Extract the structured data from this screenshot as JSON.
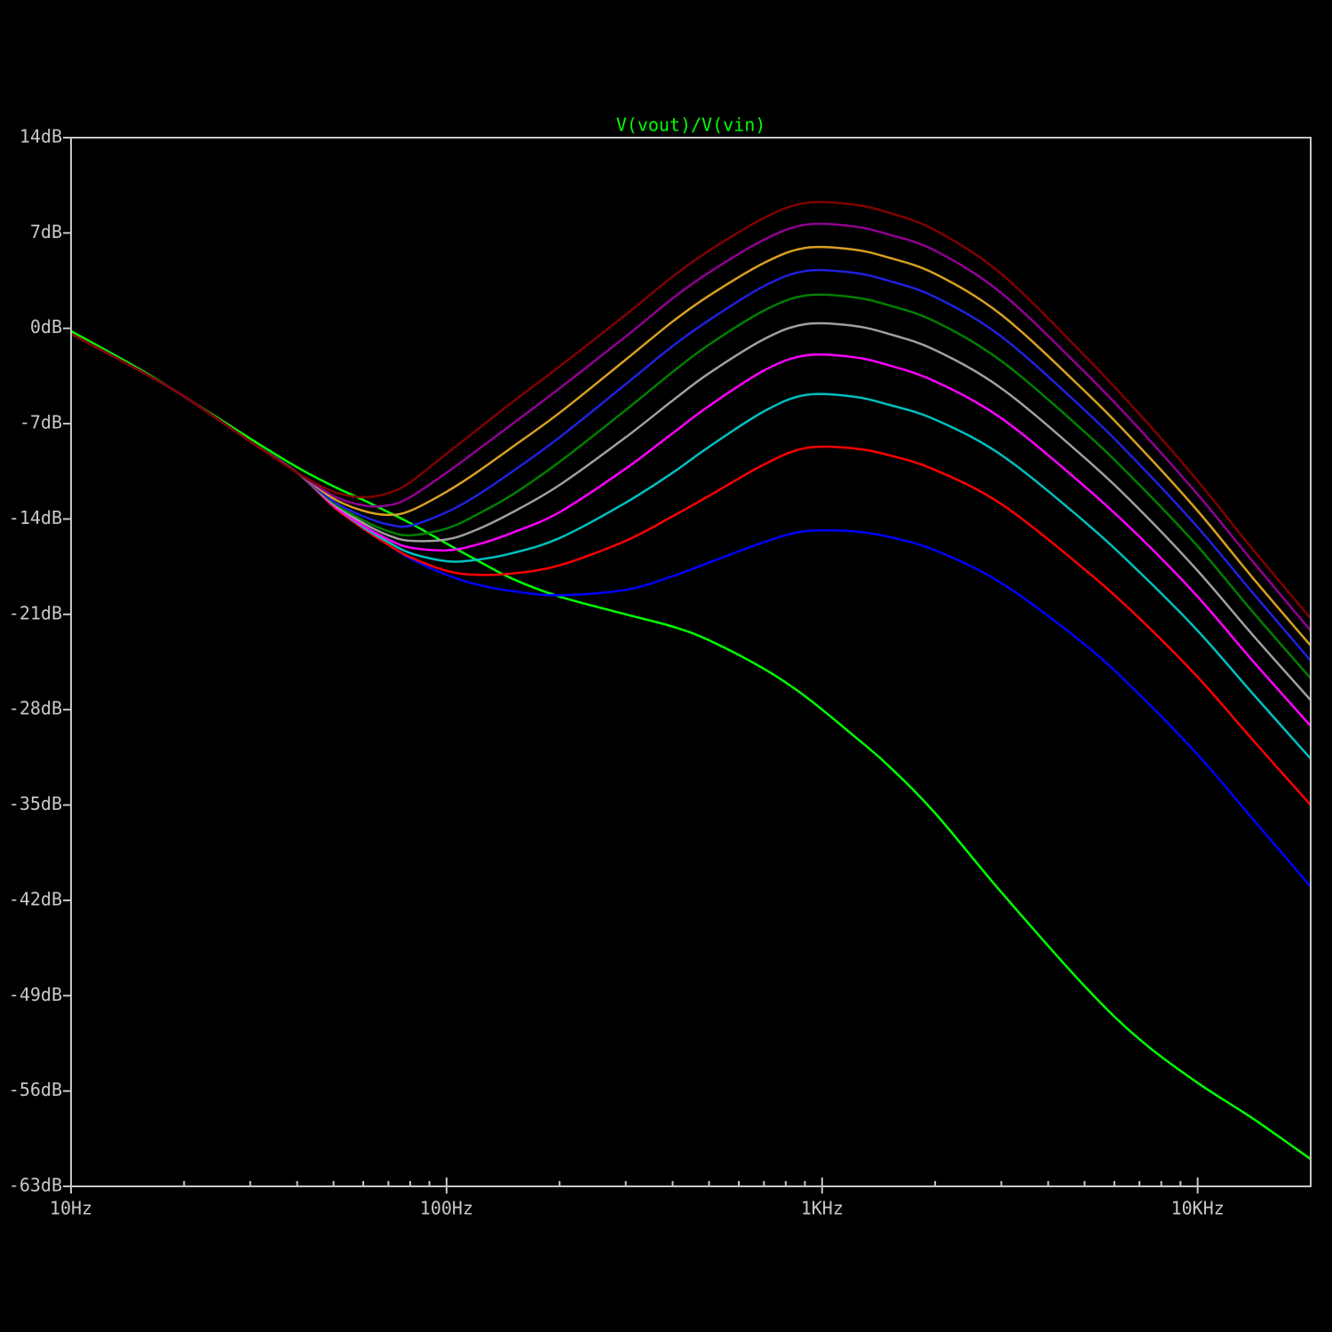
{
  "chart_data": {
    "type": "line",
    "title": "V(vout)/V(vin)",
    "title_color": "#00ff00",
    "log_x": true,
    "grid": false,
    "x": [
      10,
      15,
      20,
      30,
      40,
      50,
      60,
      70,
      80,
      100,
      120,
      150,
      200,
      300,
      400,
      500,
      700,
      900,
      1200,
      1500,
      2000,
      3000,
      5000,
      7000,
      10000,
      14000,
      20000
    ],
    "xlim": [
      10,
      20000
    ],
    "xticks": [
      {
        "value": 10,
        "label": "10Hz"
      },
      {
        "value": 100,
        "label": "100Hz"
      },
      {
        "value": 1000,
        "label": "1KHz"
      },
      {
        "value": 10000,
        "label": "10KHz"
      }
    ],
    "xminor_ticks": [
      20,
      30,
      40,
      50,
      60,
      70,
      80,
      90,
      200,
      300,
      400,
      500,
      600,
      700,
      800,
      900,
      2000,
      3000,
      4000,
      5000,
      6000,
      7000,
      8000,
      9000,
      20000
    ],
    "ylim": [
      -63,
      14
    ],
    "yticks": [
      {
        "value": 14,
        "label": "14dB"
      },
      {
        "value": 7,
        "label": "7dB"
      },
      {
        "value": 0,
        "label": "0dB"
      },
      {
        "value": -7,
        "label": "-7dB"
      },
      {
        "value": -14,
        "label": "-14dB"
      },
      {
        "value": -21,
        "label": "-21dB"
      },
      {
        "value": -28,
        "label": "-28dB"
      },
      {
        "value": -35,
        "label": "-35dB"
      },
      {
        "value": -42,
        "label": "-42dB"
      },
      {
        "value": -49,
        "label": "-49dB"
      },
      {
        "value": -56,
        "label": "-56dB"
      },
      {
        "value": -63,
        "label": "-63dB"
      }
    ],
    "series": [
      {
        "color": "#00ff00",
        "values": [
          -0.2,
          -2.9,
          -5,
          -8.1,
          -10.2,
          -11.6,
          -12.6,
          -13.5,
          -14.3,
          -15.8,
          -17,
          -18.4,
          -19.7,
          -21,
          -21.9,
          -22.9,
          -25,
          -27,
          -29.8,
          -32.1,
          -35.6,
          -41.4,
          -48.3,
          -52.2,
          -55.4,
          -58,
          -61
        ]
      },
      {
        "color": "#0000ff",
        "values": [
          -0.4,
          -3,
          -5,
          -8.3,
          -10.6,
          -13.1,
          -14.7,
          -15.9,
          -16.9,
          -18.1,
          -18.8,
          -19.3,
          -19.6,
          -19.2,
          -18.2,
          -17.2,
          -15.7,
          -14.9,
          -14.9,
          -15.3,
          -16.3,
          -18.7,
          -23.2,
          -26.9,
          -31.3,
          -36,
          -41
        ]
      },
      {
        "color": "#ff0000",
        "values": [
          -0.4,
          -3,
          -5,
          -8.3,
          -10.6,
          -13.1,
          -14.7,
          -15.9,
          -16.8,
          -17.8,
          -18.1,
          -18,
          -17.4,
          -15.6,
          -13.8,
          -12.3,
          -10,
          -8.8,
          -8.8,
          -9.3,
          -10.4,
          -12.9,
          -17.7,
          -21.3,
          -25.6,
          -30.2,
          -35
        ]
      },
      {
        "color": "#00c0c0",
        "values": [
          -0.4,
          -3,
          -5,
          -8.3,
          -10.6,
          -13,
          -14.6,
          -15.7,
          -16.5,
          -17.1,
          -17,
          -16.5,
          -15.4,
          -12.8,
          -10.6,
          -8.7,
          -6.1,
          -4.9,
          -5,
          -5.6,
          -6.7,
          -9.3,
          -14.2,
          -17.9,
          -22.2,
          -26.8,
          -31.6
        ]
      },
      {
        "color": "#ff00ff",
        "values": [
          -0.4,
          -3,
          -5,
          -8.3,
          -10.6,
          -13,
          -14.5,
          -15.5,
          -16.1,
          -16.3,
          -15.9,
          -15,
          -13.5,
          -10.3,
          -7.7,
          -5.7,
          -3.1,
          -2,
          -2.1,
          -2.7,
          -3.9,
          -6.6,
          -11.6,
          -15.3,
          -19.7,
          -24.4,
          -29.2
        ]
      },
      {
        "color": "#a0a0a0",
        "values": [
          -0.4,
          -3,
          -5,
          -8.3,
          -10.6,
          -12.9,
          -14.3,
          -15.2,
          -15.6,
          -15.5,
          -14.8,
          -13.5,
          -11.5,
          -8,
          -5.3,
          -3.3,
          -0.8,
          0.3,
          0.2,
          -0.4,
          -1.6,
          -4.4,
          -9.5,
          -13.3,
          -17.8,
          -22.5,
          -27.3
        ]
      },
      {
        "color": "#008000",
        "values": [
          -0.4,
          -3,
          -5,
          -8.3,
          -10.6,
          -12.8,
          -14.1,
          -14.9,
          -15.2,
          -14.7,
          -13.7,
          -12.2,
          -9.8,
          -6,
          -3.2,
          -1.2,
          1.3,
          2.4,
          2.3,
          1.7,
          0.5,
          -2.4,
          -7.6,
          -11.5,
          -16,
          -20.8,
          -25.7
        ]
      },
      {
        "color": "#2020e0",
        "values": [
          -0.4,
          -3,
          -5,
          -8.3,
          -10.6,
          -12.7,
          -13.8,
          -14.4,
          -14.5,
          -13.5,
          -12.3,
          -10.5,
          -8,
          -4.1,
          -1.3,
          0.6,
          3.1,
          4.2,
          4.1,
          3.5,
          2.3,
          -0.6,
          -6,
          -10,
          -14.6,
          -19.4,
          -24.4
        ]
      },
      {
        "color": "#d9a020",
        "values": [
          -0.4,
          -3,
          -5,
          -8.3,
          -10.6,
          -12.5,
          -13.4,
          -13.7,
          -13.4,
          -12,
          -10.6,
          -8.7,
          -6.2,
          -2.3,
          0.5,
          2.4,
          4.8,
          5.9,
          5.8,
          5.2,
          4,
          1,
          -4.6,
          -8.7,
          -13.4,
          -18.3,
          -23.3
        ]
      },
      {
        "color": "#900090",
        "values": [
          -0.4,
          -3,
          -5,
          -8.3,
          -10.6,
          -12.3,
          -13,
          -13,
          -12.4,
          -10.6,
          -9,
          -7,
          -4.4,
          -0.6,
          2.2,
          4.1,
          6.5,
          7.6,
          7.5,
          6.9,
          5.7,
          2.6,
          -3.2,
          -7.4,
          -12.2,
          -17.1,
          -22.2
        ]
      },
      {
        "color": "#800000",
        "values": [
          -0.4,
          -3,
          -5,
          -8.3,
          -10.6,
          -12,
          -12.4,
          -12.1,
          -11.3,
          -9.2,
          -7.5,
          -5.4,
          -2.8,
          1,
          3.8,
          5.7,
          8.1,
          9.2,
          9.1,
          8.5,
          7.2,
          4,
          -2,
          -6.3,
          -11.2,
          -16.2,
          -21.3
        ]
      }
    ]
  }
}
